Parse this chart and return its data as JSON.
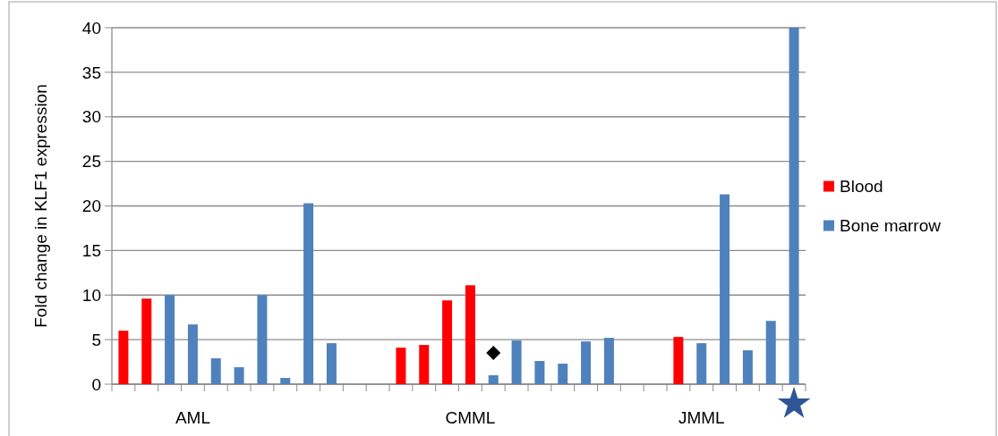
{
  "chart_data": {
    "type": "bar",
    "ylabel": "Fold change in KLF1 expression",
    "categories": [
      null,
      null,
      null,
      "AML",
      null,
      null,
      null,
      null,
      null,
      null,
      null,
      null,
      null,
      null,
      null,
      "CMML",
      null,
      null,
      null,
      null,
      null,
      null,
      null,
      null,
      null,
      "JMML",
      null,
      null,
      null,
      null
    ],
    "series": [
      {
        "name": "Blood",
        "color": "#ff0000",
        "values": [
          6.0,
          9.6,
          null,
          null,
          null,
          null,
          null,
          null,
          null,
          null,
          null,
          null,
          4.1,
          4.4,
          9.4,
          11.1,
          null,
          null,
          null,
          null,
          null,
          null,
          null,
          null,
          5.3,
          null,
          null,
          null,
          null,
          null
        ]
      },
      {
        "name": "Bone marrow",
        "color": "#4f81bd",
        "values": [
          null,
          null,
          10,
          6.7,
          2.9,
          1.9,
          10,
          0.7,
          20.3,
          4.6,
          null,
          null,
          null,
          null,
          null,
          null,
          1.0,
          4.9,
          2.6,
          2.3,
          4.8,
          5.2,
          null,
          null,
          null,
          4.6,
          21.3,
          3.8,
          7.1,
          40
        ]
      },
      {
        "type": "scatter",
        "color": "#000000",
        "marker": "diamond",
        "values": [
          null,
          null,
          null,
          null,
          null,
          null,
          null,
          null,
          null,
          null,
          null,
          null,
          null,
          null,
          null,
          null,
          3.5,
          null,
          null,
          null,
          null,
          null,
          null,
          null,
          null,
          null,
          null,
          null,
          null,
          null
        ]
      }
    ],
    "ylim": [
      0,
      40
    ],
    "yticks": [
      0,
      5,
      10,
      15,
      20,
      25,
      30,
      35,
      40
    ],
    "grid": "y",
    "legend": "right"
  }
}
